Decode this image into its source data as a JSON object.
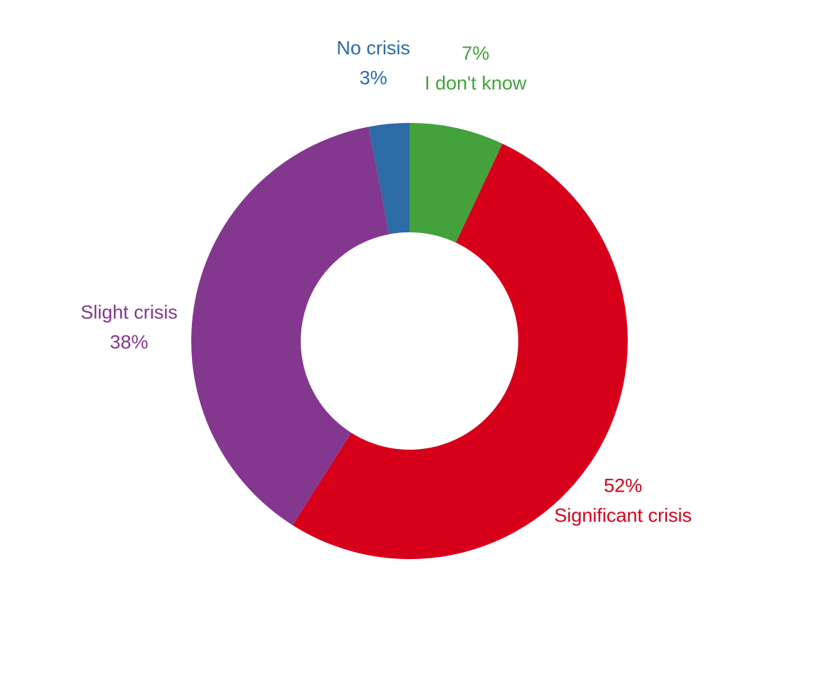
{
  "chart_data": {
    "type": "pie",
    "donut": true,
    "start_angle_deg": 0,
    "direction": "clockwise",
    "slices": [
      {
        "label": "I don't know",
        "pct_text": "7%",
        "value": 7,
        "color": "#43a23b",
        "label_layout": "pct-above"
      },
      {
        "label": "Significant crisis",
        "pct_text": "52%",
        "value": 52,
        "color": "#d7001b",
        "label_layout": "pct-above"
      },
      {
        "label": "Slight crisis",
        "pct_text": "38%",
        "value": 38,
        "color": "#84378e",
        "label_layout": "name-above"
      },
      {
        "label": "No crisis",
        "pct_text": "3%",
        "value": 3,
        "color": "#2d6aa8",
        "label_layout": "name-above"
      }
    ]
  }
}
